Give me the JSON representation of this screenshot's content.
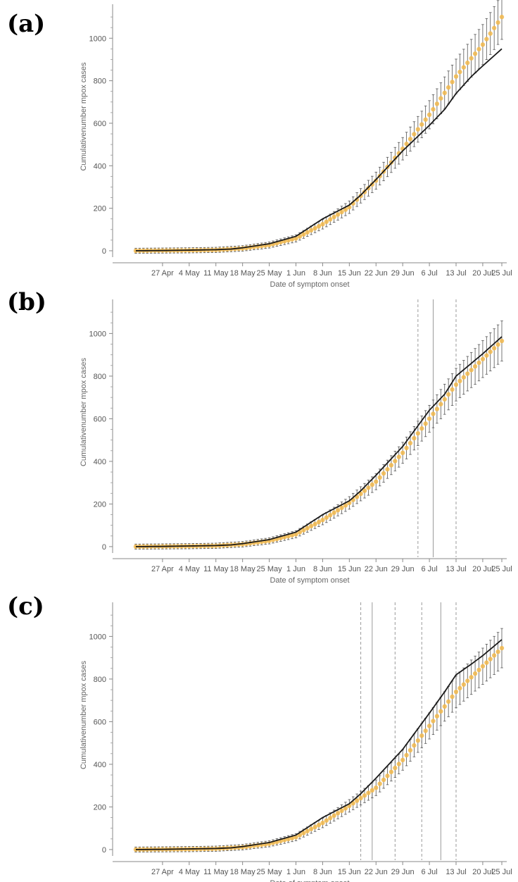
{
  "chart_data": [
    {
      "panel": "(a)",
      "type": "line",
      "xlabel": "Date of symptom onset",
      "ylabel": "Cumulativenumber mpox cases",
      "x_tick_labels": [
        "27 Apr",
        "4 May",
        "11 May",
        "18 May",
        "25 May",
        "1 Jun",
        "8 Jun",
        "15 Jun",
        "22 Jun",
        "29 Jun",
        "6 Jul",
        "13 Jul",
        "20 Jul",
        "25 Jul"
      ],
      "y_ticks": [
        0,
        200,
        400,
        600,
        800,
        1000
      ],
      "ylim": [
        -30,
        1160
      ],
      "x_range_dates": [
        "2022-04-20",
        "2022-07-25"
      ],
      "grid": false,
      "vertical_markers": [],
      "series": [
        {
          "kind": "observed",
          "color": "#1a1a1a",
          "points": [
            [
              "2022-04-20",
              0
            ],
            [
              "2022-04-27",
              1
            ],
            [
              "2022-05-04",
              3
            ],
            [
              "2022-05-11",
              5
            ],
            [
              "2022-05-15",
              8
            ],
            [
              "2022-05-18",
              14
            ],
            [
              "2022-05-25",
              33
            ],
            [
              "2022-06-01",
              68
            ],
            [
              "2022-06-08",
              150
            ],
            [
              "2022-06-15",
              215
            ],
            [
              "2022-06-18",
              262
            ],
            [
              "2022-06-22",
              335
            ],
            [
              "2022-06-29",
              470
            ],
            [
              "2022-07-06",
              590
            ],
            [
              "2022-07-10",
              665
            ],
            [
              "2022-07-13",
              740
            ],
            [
              "2022-07-17",
              820
            ],
            [
              "2022-07-20",
              870
            ],
            [
              "2022-07-25",
              950
            ]
          ]
        },
        {
          "kind": "estimated",
          "color": "#f2b84b",
          "error_color": "#555555",
          "points": [
            [
              "2022-04-20",
              0
            ],
            [
              "2022-04-27",
              1
            ],
            [
              "2022-05-04",
              2
            ],
            [
              "2022-05-11",
              4
            ],
            [
              "2022-05-18",
              11
            ],
            [
              "2022-05-25",
              27
            ],
            [
              "2022-06-01",
              58
            ],
            [
              "2022-06-08",
              125
            ],
            [
              "2022-06-15",
              205
            ],
            [
              "2022-06-22",
              330
            ],
            [
              "2022-06-29",
              480
            ],
            [
              "2022-07-06",
              640
            ],
            [
              "2022-07-13",
              820
            ],
            [
              "2022-07-20",
              970
            ],
            [
              "2022-07-25",
              1100
            ]
          ]
        }
      ]
    },
    {
      "panel": "(b)",
      "type": "line",
      "xlabel": "Date of symptom onset",
      "ylabel": "Cumulativenumber mpox cases",
      "x_tick_labels": [
        "27 Apr",
        "4 May",
        "11 May",
        "18 May",
        "25 May",
        "1 Jun",
        "8 Jun",
        "15 Jun",
        "22 Jun",
        "29 Jun",
        "6 Jul",
        "13 Jul",
        "20 Jul",
        "25 Jul"
      ],
      "y_ticks": [
        0,
        200,
        400,
        600,
        800,
        1000
      ],
      "ylim": [
        -30,
        1160
      ],
      "x_range_dates": [
        "2022-04-20",
        "2022-07-25"
      ],
      "grid": false,
      "vertical_markers": [
        {
          "date": "2022-07-03",
          "style": "dashed"
        },
        {
          "date": "2022-07-07",
          "style": "solid"
        },
        {
          "date": "2022-07-13",
          "style": "dashed"
        }
      ],
      "series": [
        {
          "kind": "observed",
          "color": "#1a1a1a",
          "points": [
            [
              "2022-04-20",
              0
            ],
            [
              "2022-04-27",
              1
            ],
            [
              "2022-05-04",
              3
            ],
            [
              "2022-05-11",
              5
            ],
            [
              "2022-05-15",
              8
            ],
            [
              "2022-05-18",
              14
            ],
            [
              "2022-05-25",
              33
            ],
            [
              "2022-06-01",
              68
            ],
            [
              "2022-06-08",
              150
            ],
            [
              "2022-06-15",
              215
            ],
            [
              "2022-06-18",
              262
            ],
            [
              "2022-06-22",
              335
            ],
            [
              "2022-06-29",
              470
            ],
            [
              "2022-07-06",
              640
            ],
            [
              "2022-07-10",
              715
            ],
            [
              "2022-07-13",
              800
            ],
            [
              "2022-07-17",
              860
            ],
            [
              "2022-07-20",
              905
            ],
            [
              "2022-07-25",
              985
            ]
          ]
        },
        {
          "kind": "estimated",
          "color": "#f2b84b",
          "error_color": "#555555",
          "points": [
            [
              "2022-04-20",
              0
            ],
            [
              "2022-04-27",
              1
            ],
            [
              "2022-05-04",
              2
            ],
            [
              "2022-05-11",
              4
            ],
            [
              "2022-05-18",
              11
            ],
            [
              "2022-05-25",
              27
            ],
            [
              "2022-06-01",
              58
            ],
            [
              "2022-06-08",
              125
            ],
            [
              "2022-06-15",
              205
            ],
            [
              "2022-06-22",
              305
            ],
            [
              "2022-06-29",
              440
            ],
            [
              "2022-07-06",
              600
            ],
            [
              "2022-07-13",
              760
            ],
            [
              "2022-07-20",
              880
            ],
            [
              "2022-07-25",
              965
            ]
          ]
        }
      ]
    },
    {
      "panel": "(c)",
      "type": "line",
      "xlabel": "Date of symptom onset",
      "ylabel": "Cumulativenumber mpox cases",
      "x_tick_labels": [
        "27 Apr",
        "4 May",
        "11 May",
        "18 May",
        "25 May",
        "1 Jun",
        "8 Jun",
        "15 Jun",
        "22 Jun",
        "29 Jun",
        "6 Jul",
        "13 Jul",
        "20 Jul",
        "25 Jul"
      ],
      "y_ticks": [
        0,
        200,
        400,
        600,
        800,
        1000
      ],
      "ylim": [
        -30,
        1160
      ],
      "x_range_dates": [
        "2022-04-20",
        "2022-07-25"
      ],
      "grid": false,
      "vertical_markers": [
        {
          "date": "2022-06-18",
          "style": "dashed"
        },
        {
          "date": "2022-06-21",
          "style": "solid"
        },
        {
          "date": "2022-06-27",
          "style": "dashed"
        },
        {
          "date": "2022-07-04",
          "style": "dashed"
        },
        {
          "date": "2022-07-09",
          "style": "solid"
        },
        {
          "date": "2022-07-13",
          "style": "dashed"
        }
      ],
      "series": [
        {
          "kind": "observed",
          "color": "#1a1a1a",
          "points": [
            [
              "2022-04-20",
              0
            ],
            [
              "2022-04-27",
              1
            ],
            [
              "2022-05-04",
              3
            ],
            [
              "2022-05-11",
              5
            ],
            [
              "2022-05-15",
              8
            ],
            [
              "2022-05-18",
              14
            ],
            [
              "2022-05-25",
              33
            ],
            [
              "2022-06-01",
              68
            ],
            [
              "2022-06-08",
              150
            ],
            [
              "2022-06-15",
              215
            ],
            [
              "2022-06-18",
              262
            ],
            [
              "2022-06-22",
              335
            ],
            [
              "2022-06-29",
              470
            ],
            [
              "2022-07-06",
              640
            ],
            [
              "2022-07-10",
              740
            ],
            [
              "2022-07-13",
              820
            ],
            [
              "2022-07-17",
              870
            ],
            [
              "2022-07-20",
              910
            ],
            [
              "2022-07-25",
              985
            ]
          ]
        },
        {
          "kind": "estimated",
          "color": "#f2b84b",
          "error_color": "#555555",
          "points": [
            [
              "2022-04-20",
              0
            ],
            [
              "2022-04-27",
              1
            ],
            [
              "2022-05-04",
              2
            ],
            [
              "2022-05-11",
              4
            ],
            [
              "2022-05-18",
              11
            ],
            [
              "2022-05-25",
              27
            ],
            [
              "2022-06-01",
              58
            ],
            [
              "2022-06-08",
              125
            ],
            [
              "2022-06-15",
              205
            ],
            [
              "2022-06-22",
              290
            ],
            [
              "2022-06-29",
              420
            ],
            [
              "2022-07-06",
              580
            ],
            [
              "2022-07-13",
              740
            ],
            [
              "2022-07-20",
              860
            ],
            [
              "2022-07-25",
              945
            ]
          ]
        }
      ]
    }
  ]
}
